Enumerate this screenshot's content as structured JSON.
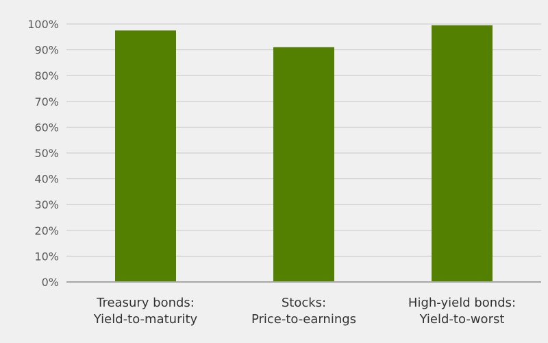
{
  "chart_data": {
    "type": "bar",
    "categories": [
      [
        "Treasury bonds:",
        "Yield-to-maturity"
      ],
      [
        "Stocks:",
        "Price-to-earnings"
      ],
      [
        "High-yield bonds:",
        "Yield-to-worst"
      ]
    ],
    "values": [
      0.975,
      0.91,
      0.995
    ],
    "ylim": [
      0,
      1
    ],
    "yticks": [
      {
        "value": 0,
        "label": "0%"
      },
      {
        "value": 0.1,
        "label": "10%"
      },
      {
        "value": 0.2,
        "label": "20%"
      },
      {
        "value": 0.3,
        "label": "30%"
      },
      {
        "value": 0.4,
        "label": "40%"
      },
      {
        "value": 0.5,
        "label": "50%"
      },
      {
        "value": 0.6,
        "label": "60%"
      },
      {
        "value": 0.7,
        "label": "70%"
      },
      {
        "value": 0.8,
        "label": "80%"
      },
      {
        "value": 0.9,
        "label": "90%"
      },
      {
        "value": 1,
        "label": "100%"
      }
    ],
    "grid": true,
    "legend": "none",
    "colors": {
      "bar": "#538000",
      "grid": "#c8c8c8",
      "axis": "#a6a6a6",
      "background": "#f0f0f0"
    }
  }
}
